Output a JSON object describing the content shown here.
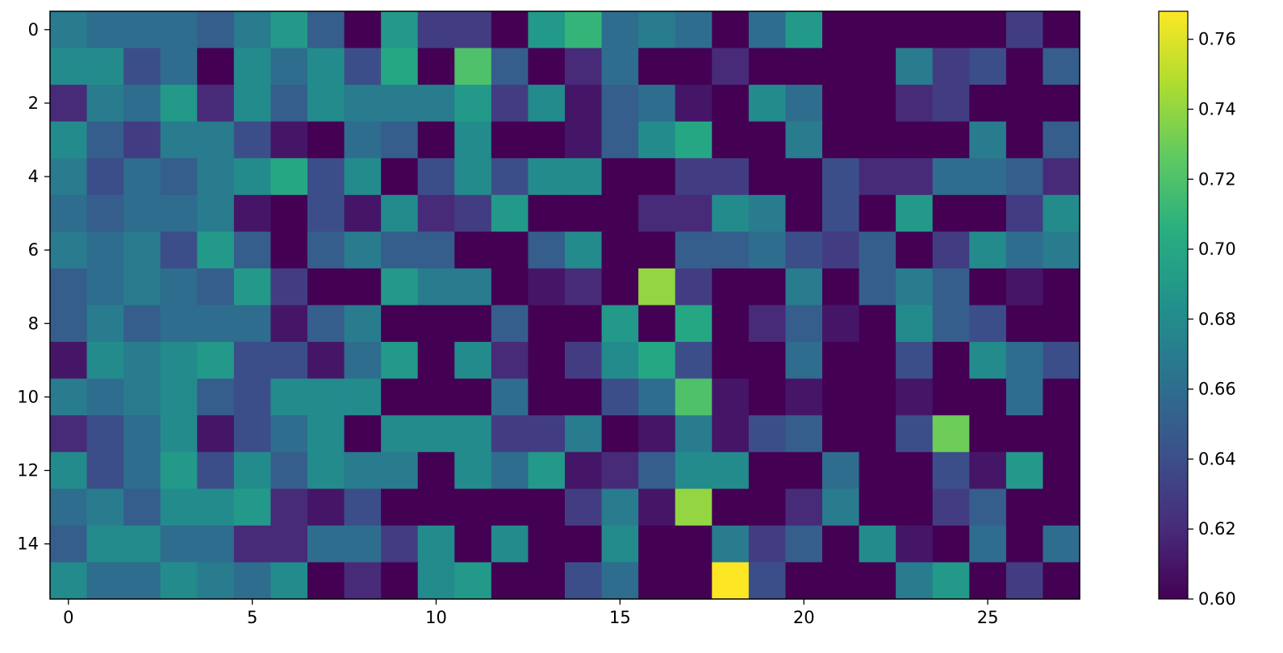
{
  "chart_data": {
    "type": "heatmap",
    "title": "",
    "xlabel": "",
    "ylabel": "",
    "colormap": "viridis",
    "rows": 16,
    "cols": 28,
    "x_ticks": [
      "0",
      "5",
      "10",
      "15",
      "20",
      "25"
    ],
    "y_ticks": [
      "0",
      "2",
      "4",
      "6",
      "8",
      "10",
      "12",
      "14"
    ],
    "colorbar_ticks": [
      "0.60",
      "0.62",
      "0.64",
      "0.66",
      "0.68",
      "0.70",
      "0.72",
      "0.74",
      "0.76"
    ],
    "vmin": 0.6,
    "vmax": 0.768,
    "values": [
      [
        0.67,
        0.66,
        0.66,
        0.66,
        0.65,
        0.67,
        0.69,
        0.65,
        0.6,
        0.69,
        0.63,
        0.63,
        0.6,
        0.69,
        0.71,
        0.66,
        0.67,
        0.66,
        0.6,
        0.66,
        0.69,
        0.6,
        0.6,
        0.6,
        0.6,
        0.6,
        0.63,
        0.6
      ],
      [
        0.68,
        0.68,
        0.64,
        0.66,
        0.6,
        0.68,
        0.66,
        0.68,
        0.64,
        0.7,
        0.6,
        0.72,
        0.65,
        0.6,
        0.62,
        0.66,
        0.6,
        0.6,
        0.62,
        0.6,
        0.6,
        0.6,
        0.6,
        0.67,
        0.63,
        0.64,
        0.6,
        0.65
      ],
      [
        0.62,
        0.67,
        0.66,
        0.69,
        0.62,
        0.68,
        0.65,
        0.68,
        0.67,
        0.67,
        0.67,
        0.69,
        0.63,
        0.68,
        0.61,
        0.65,
        0.66,
        0.61,
        0.6,
        0.68,
        0.66,
        0.6,
        0.6,
        0.62,
        0.63,
        0.6,
        0.6,
        0.6
      ],
      [
        0.68,
        0.65,
        0.63,
        0.67,
        0.67,
        0.64,
        0.61,
        0.6,
        0.66,
        0.65,
        0.6,
        0.68,
        0.6,
        0.6,
        0.61,
        0.65,
        0.68,
        0.7,
        0.6,
        0.6,
        0.67,
        0.6,
        0.6,
        0.6,
        0.6,
        0.67,
        0.6,
        0.65
      ],
      [
        0.67,
        0.64,
        0.66,
        0.65,
        0.67,
        0.68,
        0.7,
        0.64,
        0.68,
        0.6,
        0.64,
        0.68,
        0.64,
        0.68,
        0.68,
        0.6,
        0.6,
        0.63,
        0.63,
        0.6,
        0.6,
        0.64,
        0.62,
        0.62,
        0.66,
        0.66,
        0.65,
        0.62
      ],
      [
        0.66,
        0.65,
        0.66,
        0.66,
        0.67,
        0.61,
        0.6,
        0.64,
        0.61,
        0.68,
        0.62,
        0.63,
        0.69,
        0.6,
        0.6,
        0.6,
        0.62,
        0.62,
        0.68,
        0.67,
        0.6,
        0.64,
        0.6,
        0.69,
        0.6,
        0.6,
        0.63,
        0.68
      ],
      [
        0.67,
        0.66,
        0.67,
        0.64,
        0.69,
        0.65,
        0.6,
        0.65,
        0.67,
        0.65,
        0.65,
        0.6,
        0.6,
        0.65,
        0.68,
        0.6,
        0.6,
        0.65,
        0.65,
        0.66,
        0.64,
        0.63,
        0.65,
        0.6,
        0.63,
        0.68,
        0.66,
        0.67
      ],
      [
        0.65,
        0.66,
        0.67,
        0.66,
        0.65,
        0.69,
        0.63,
        0.6,
        0.6,
        0.69,
        0.67,
        0.67,
        0.6,
        0.61,
        0.62,
        0.6,
        0.74,
        0.63,
        0.6,
        0.6,
        0.67,
        0.6,
        0.65,
        0.67,
        0.65,
        0.6,
        0.61,
        0.6
      ],
      [
        0.65,
        0.67,
        0.65,
        0.66,
        0.66,
        0.66,
        0.61,
        0.65,
        0.67,
        0.6,
        0.6,
        0.6,
        0.65,
        0.6,
        0.6,
        0.69,
        0.6,
        0.7,
        0.6,
        0.62,
        0.65,
        0.61,
        0.6,
        0.68,
        0.65,
        0.64,
        0.6,
        0.6
      ],
      [
        0.61,
        0.68,
        0.67,
        0.68,
        0.69,
        0.64,
        0.64,
        0.61,
        0.66,
        0.69,
        0.6,
        0.68,
        0.62,
        0.6,
        0.63,
        0.68,
        0.7,
        0.64,
        0.6,
        0.6,
        0.66,
        0.6,
        0.6,
        0.64,
        0.6,
        0.68,
        0.66,
        0.64
      ],
      [
        0.67,
        0.66,
        0.67,
        0.68,
        0.65,
        0.64,
        0.68,
        0.68,
        0.68,
        0.6,
        0.6,
        0.6,
        0.66,
        0.6,
        0.6,
        0.64,
        0.66,
        0.72,
        0.61,
        0.6,
        0.61,
        0.6,
        0.6,
        0.61,
        0.6,
        0.6,
        0.66,
        0.6
      ],
      [
        0.62,
        0.64,
        0.66,
        0.68,
        0.61,
        0.64,
        0.66,
        0.68,
        0.6,
        0.68,
        0.68,
        0.68,
        0.63,
        0.63,
        0.67,
        0.6,
        0.61,
        0.67,
        0.61,
        0.64,
        0.65,
        0.6,
        0.6,
        0.64,
        0.73,
        0.6,
        0.6,
        0.6
      ],
      [
        0.68,
        0.64,
        0.66,
        0.69,
        0.64,
        0.68,
        0.65,
        0.68,
        0.67,
        0.67,
        0.6,
        0.68,
        0.66,
        0.69,
        0.61,
        0.62,
        0.65,
        0.68,
        0.68,
        0.6,
        0.6,
        0.66,
        0.6,
        0.6,
        0.64,
        0.61,
        0.69,
        0.6
      ],
      [
        0.66,
        0.67,
        0.65,
        0.68,
        0.68,
        0.69,
        0.62,
        0.61,
        0.64,
        0.6,
        0.6,
        0.6,
        0.6,
        0.6,
        0.63,
        0.67,
        0.61,
        0.74,
        0.6,
        0.6,
        0.62,
        0.67,
        0.6,
        0.6,
        0.63,
        0.65,
        0.6,
        0.6
      ],
      [
        0.65,
        0.68,
        0.68,
        0.66,
        0.66,
        0.62,
        0.62,
        0.66,
        0.66,
        0.63,
        0.68,
        0.6,
        0.68,
        0.6,
        0.6,
        0.68,
        0.6,
        0.6,
        0.67,
        0.63,
        0.65,
        0.6,
        0.68,
        0.61,
        0.6,
        0.66,
        0.6,
        0.66
      ],
      [
        0.68,
        0.66,
        0.66,
        0.68,
        0.67,
        0.66,
        0.68,
        0.6,
        0.62,
        0.6,
        0.68,
        0.69,
        0.6,
        0.6,
        0.64,
        0.66,
        0.6,
        0.6,
        0.77,
        0.64,
        0.6,
        0.6,
        0.6,
        0.67,
        0.69,
        0.6,
        0.63,
        0.6
      ]
    ]
  }
}
